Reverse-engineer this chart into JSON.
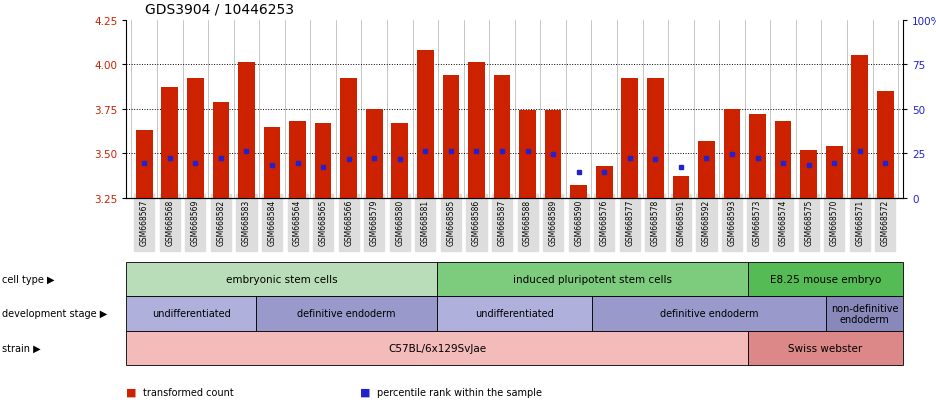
{
  "title": "GDS3904 / 10446253",
  "samples": [
    "GSM668567",
    "GSM668568",
    "GSM668569",
    "GSM668582",
    "GSM668583",
    "GSM668584",
    "GSM668564",
    "GSM668565",
    "GSM668566",
    "GSM668579",
    "GSM668580",
    "GSM668581",
    "GSM668585",
    "GSM668586",
    "GSM668587",
    "GSM668588",
    "GSM668589",
    "GSM668590",
    "GSM668576",
    "GSM668577",
    "GSM668578",
    "GSM668591",
    "GSM668592",
    "GSM668593",
    "GSM668573",
    "GSM668574",
    "GSM668575",
    "GSM668570",
    "GSM668571",
    "GSM668572"
  ],
  "bar_values": [
    3.63,
    3.87,
    3.92,
    3.79,
    4.01,
    3.65,
    3.68,
    3.67,
    3.92,
    3.75,
    3.67,
    4.08,
    3.94,
    4.01,
    3.94,
    3.74,
    3.74,
    3.32,
    3.43,
    3.92,
    3.92,
    3.37,
    3.57,
    3.75,
    3.72,
    3.68,
    3.52,
    3.54,
    4.05,
    3.85
  ],
  "percentile_values": [
    3.445,
    3.475,
    3.445,
    3.475,
    3.515,
    3.435,
    3.445,
    3.425,
    3.465,
    3.475,
    3.465,
    3.515,
    3.515,
    3.515,
    3.515,
    3.515,
    3.495,
    3.395,
    3.395,
    3.475,
    3.465,
    3.425,
    3.475,
    3.495,
    3.475,
    3.445,
    3.435,
    3.445,
    3.515,
    3.445
  ],
  "bar_color": "#cc2200",
  "percentile_color": "#2222cc",
  "ylim": [
    3.25,
    4.25
  ],
  "yticks": [
    3.25,
    3.5,
    3.75,
    4.0,
    4.25
  ],
  "right_yticks": [
    0,
    25,
    50,
    75,
    100
  ],
  "right_ytick_labels": [
    "0",
    "25",
    "50",
    "75",
    "100%"
  ],
  "grid_values": [
    3.5,
    3.75,
    4.0
  ],
  "left_color": "#cc2200",
  "right_color": "#2222cc",
  "cell_type_groups": [
    {
      "label": "embryonic stem cells",
      "start": 0,
      "end": 11,
      "color": "#b8ddb8"
    },
    {
      "label": "induced pluripotent stem cells",
      "start": 12,
      "end": 23,
      "color": "#7dcc7d"
    },
    {
      "label": "E8.25 mouse embryo",
      "start": 24,
      "end": 29,
      "color": "#55bb55"
    }
  ],
  "dev_stage_groups": [
    {
      "label": "undifferentiated",
      "start": 0,
      "end": 4,
      "color": "#b0b0dd"
    },
    {
      "label": "definitive endoderm",
      "start": 5,
      "end": 11,
      "color": "#9999cc"
    },
    {
      "label": "undifferentiated",
      "start": 12,
      "end": 17,
      "color": "#b0b0dd"
    },
    {
      "label": "definitive endoderm",
      "start": 18,
      "end": 26,
      "color": "#9999cc"
    },
    {
      "label": "non-definitive\nendoderm",
      "start": 27,
      "end": 29,
      "color": "#8888bb"
    }
  ],
  "strain_groups": [
    {
      "label": "C57BL/6x129SvJae",
      "start": 0,
      "end": 23,
      "color": "#f4bbbb"
    },
    {
      "label": "Swiss webster",
      "start": 24,
      "end": 29,
      "color": "#dd8888"
    }
  ],
  "row_labels": [
    "cell type",
    "development stage",
    "strain"
  ],
  "legend_items": [
    {
      "color": "#cc2200",
      "label": "transformed count"
    },
    {
      "color": "#2222cc",
      "label": "percentile rank within the sample"
    }
  ]
}
